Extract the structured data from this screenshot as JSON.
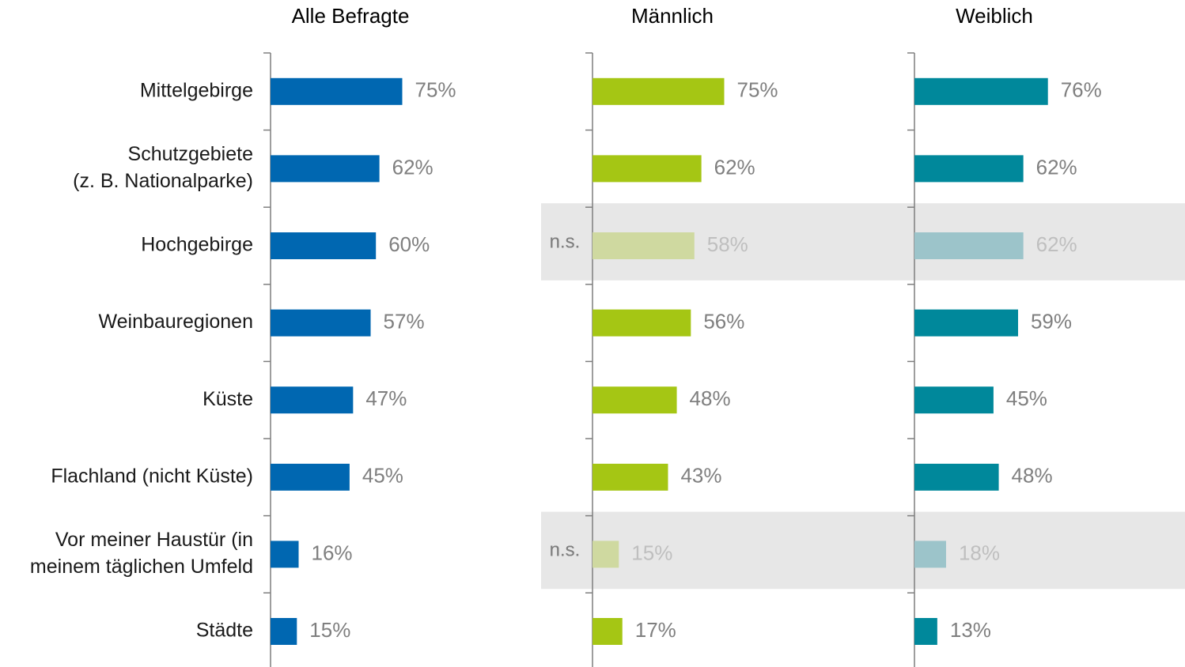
{
  "chart_data": {
    "type": "bar",
    "categories": [
      "Mittelgebirge",
      [
        "Schutzgebiete",
        "(z. B. Nationalparke)"
      ],
      "Hochgebirge",
      "Weinbauregionen",
      "Küste",
      "Flachland (nicht Küste)",
      [
        "Vor meiner Haustür (in",
        "meinem täglichen Umfeld"
      ],
      "Städte"
    ],
    "series": [
      {
        "name": "Alle Befragte",
        "color": "#0067b1",
        "values": [
          75,
          62,
          60,
          57,
          47,
          45,
          16,
          15
        ],
        "value_labels": [
          "75%",
          "62%",
          "60%",
          "57%",
          "47%",
          "45%",
          "16%",
          "15%"
        ]
      },
      {
        "name": "Männlich",
        "color": "#a5c614",
        "faded_color": "#cfd9a0",
        "values": [
          75,
          62,
          58,
          56,
          48,
          43,
          15,
          17
        ],
        "value_labels": [
          "75%",
          "62%",
          "58%",
          "56%",
          "48%",
          "43%",
          "15%",
          "17%"
        ]
      },
      {
        "name": "Weiblich",
        "color": "#00889b",
        "faded_color": "#9cc4ca",
        "values": [
          76,
          62,
          62,
          59,
          45,
          48,
          18,
          13
        ],
        "value_labels": [
          "76%",
          "62%",
          "62%",
          "59%",
          "45%",
          "48%",
          "18%",
          "13%"
        ]
      }
    ],
    "not_significant_rows": [
      2,
      6
    ],
    "not_significant_label": "n.s."
  }
}
